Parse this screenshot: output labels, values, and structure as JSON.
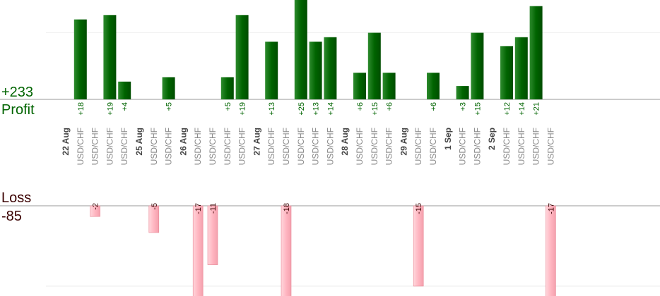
{
  "summary": {
    "profit_total": "+233",
    "profit_label": "Profit",
    "loss_label": "Loss",
    "loss_total": "-85"
  },
  "colors": {
    "profit_bar": "#006400",
    "profit_text": "#006400",
    "loss_bar": "#ffb6c1",
    "loss_text": "#3a0000",
    "axis": "#999999",
    "grid": "#eeeeee",
    "date_text": "#444444",
    "symbol_text": "#888888"
  },
  "chart_data": {
    "type": "bar",
    "profit_axis_max": 15,
    "loss_axis_max": 15,
    "dates": [
      "22 Aug",
      "25 Aug",
      "26 Aug",
      "27 Aug",
      "28 Aug",
      "29 Aug",
      "1 Sep",
      "2 Sep"
    ],
    "trades": [
      {
        "date": "22 Aug",
        "symbol": "USD/CHF",
        "profit": 18,
        "label": "+18"
      },
      {
        "date": "22 Aug",
        "symbol": "USD/CHF",
        "loss": -2,
        "label": "-2"
      },
      {
        "date": "22 Aug",
        "symbol": "USD/CHF",
        "profit": 19,
        "label": "+19"
      },
      {
        "date": "22 Aug",
        "symbol": "USD/CHF",
        "profit": 4,
        "label": "+4"
      },
      {
        "date": "25 Aug",
        "symbol": "USD/CHF",
        "loss": -5,
        "label": "-5"
      },
      {
        "date": "25 Aug",
        "symbol": "USD/CHF",
        "profit": 5,
        "label": "+5"
      },
      {
        "date": "26 Aug",
        "symbol": "USD/CHF",
        "loss": -17,
        "label": "-17"
      },
      {
        "date": "26 Aug",
        "symbol": "USD/CHF",
        "loss": -11,
        "label": "-11"
      },
      {
        "date": "26 Aug",
        "symbol": "USD/CHF",
        "profit": 5,
        "label": "+5"
      },
      {
        "date": "26 Aug",
        "symbol": "USD/CHF",
        "profit": 19,
        "label": "+19"
      },
      {
        "date": "27 Aug",
        "symbol": "USD/CHF",
        "profit": 13,
        "label": "+13"
      },
      {
        "date": "27 Aug",
        "symbol": "USD/CHF",
        "loss": -18,
        "label": "-18"
      },
      {
        "date": "27 Aug",
        "symbol": "USD/CHF",
        "profit": 25,
        "label": "+25"
      },
      {
        "date": "27 Aug",
        "symbol": "USD/CHF",
        "profit": 13,
        "label": "+13"
      },
      {
        "date": "27 Aug",
        "symbol": "USD/CHF",
        "profit": 14,
        "label": "+14"
      },
      {
        "date": "28 Aug",
        "symbol": "USD/CHF",
        "profit": 6,
        "label": "+6"
      },
      {
        "date": "28 Aug",
        "symbol": "USD/CHF",
        "profit": 15,
        "label": "+15"
      },
      {
        "date": "28 Aug",
        "symbol": "USD/CHF",
        "profit": 6,
        "label": "+6"
      },
      {
        "date": "29 Aug",
        "symbol": "USD/CHF",
        "loss": -15,
        "label": "-15"
      },
      {
        "date": "29 Aug",
        "symbol": "USD/CHF",
        "profit": 6,
        "label": "+6"
      },
      {
        "date": "1 Sep",
        "symbol": "USD/CHF",
        "profit": 3,
        "label": "+3"
      },
      {
        "date": "1 Sep",
        "symbol": "USD/CHF",
        "profit": 15,
        "label": "+15"
      },
      {
        "date": "2 Sep",
        "symbol": "USD/CHF",
        "profit": 12,
        "label": "+12"
      },
      {
        "date": "2 Sep",
        "symbol": "USD/CHF",
        "profit": 14,
        "label": "+14"
      },
      {
        "date": "2 Sep",
        "symbol": "USD/CHF",
        "profit": 21,
        "label": "+21"
      },
      {
        "date": "2 Sep",
        "symbol": "USD/CHF",
        "loss": -17,
        "label": "-17"
      }
    ]
  }
}
